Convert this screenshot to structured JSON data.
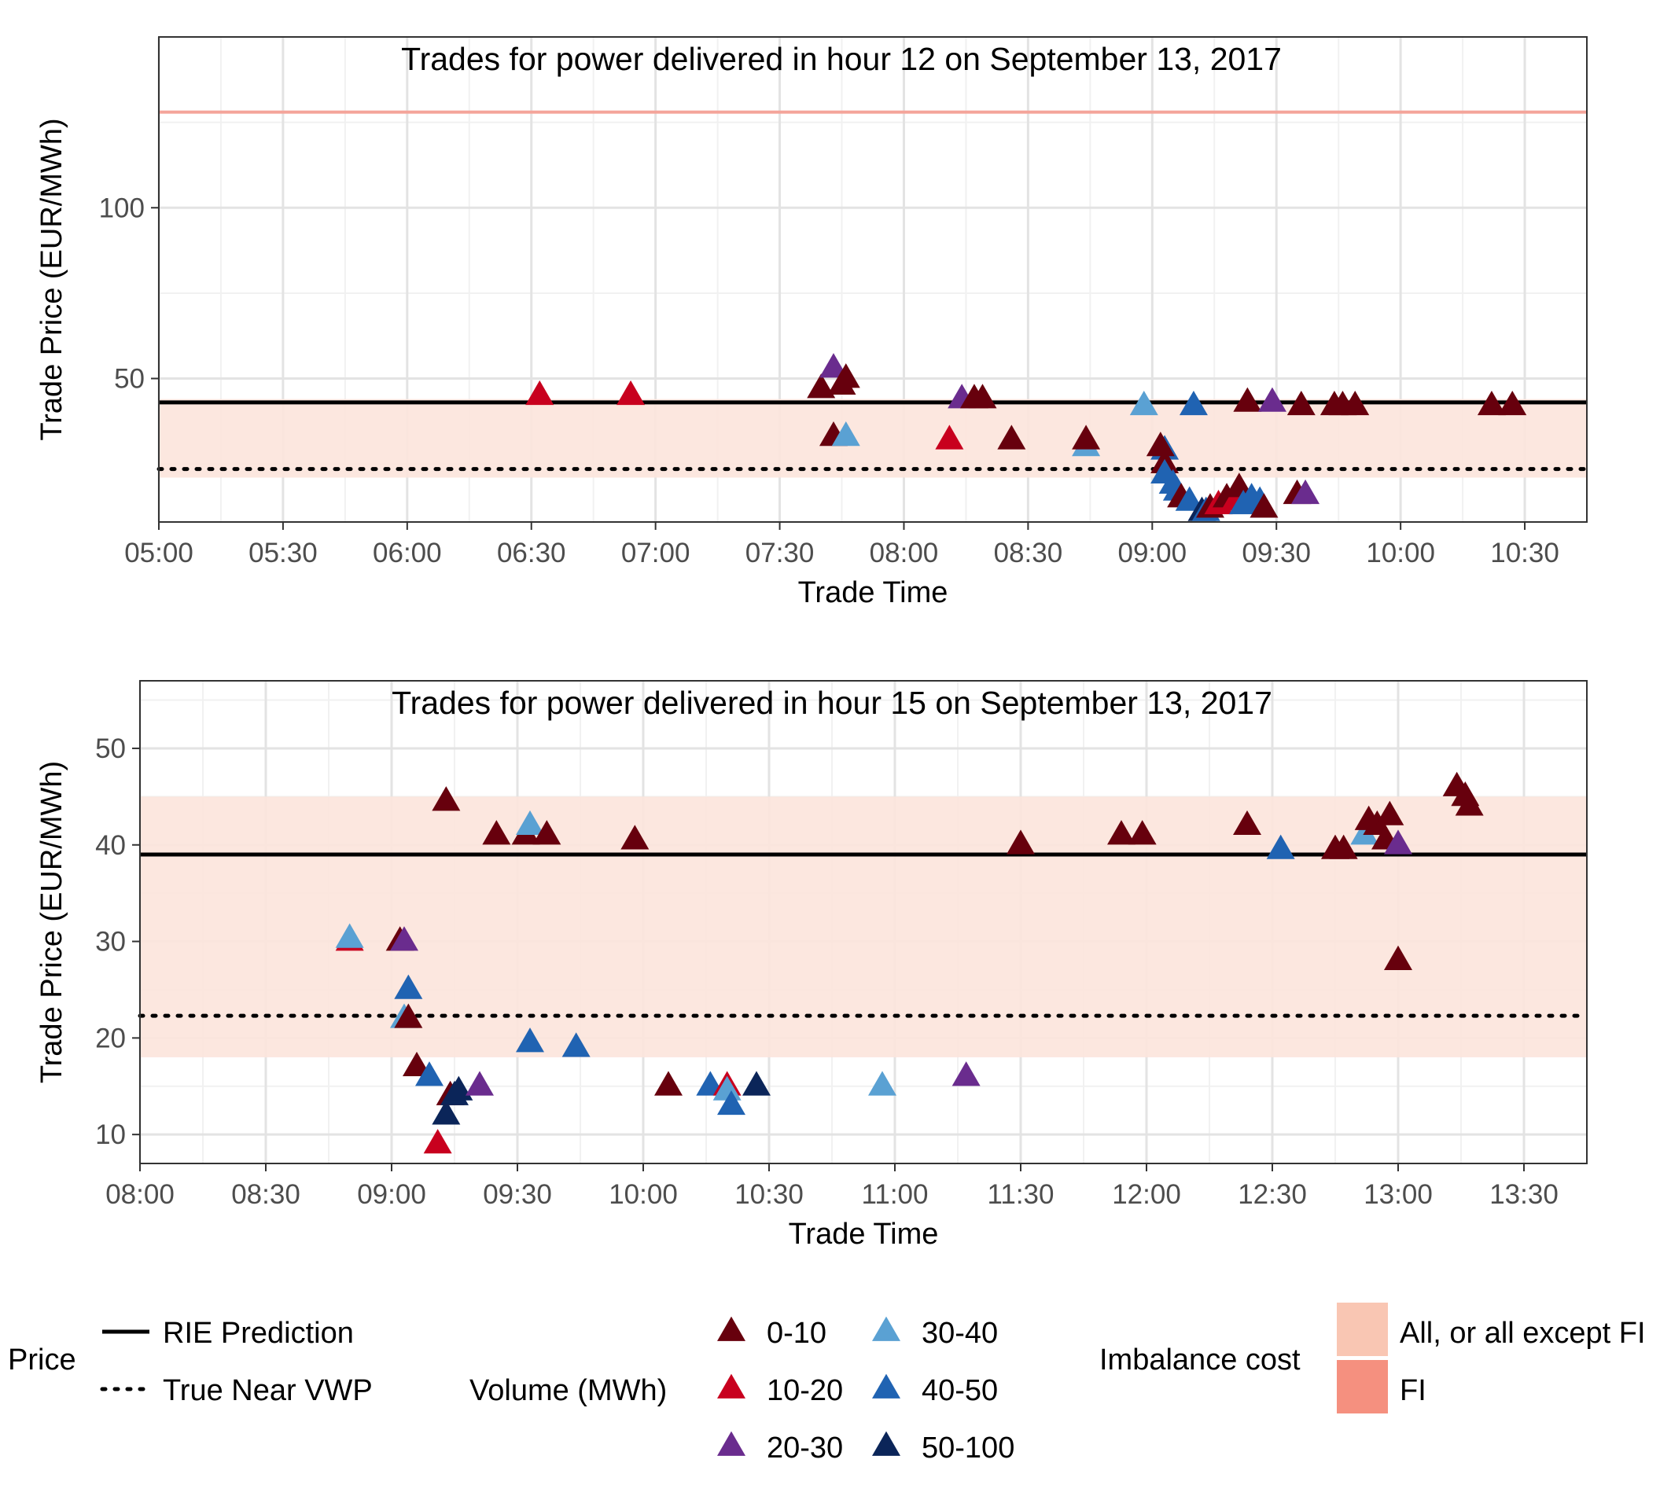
{
  "chart_data": [
    {
      "type": "scatter",
      "title": "Trades for power delivered in hour 12 on September 13, 2017",
      "xlabel": "Trade Time",
      "ylabel": "Trade Price (EUR/MWh)",
      "x_ticks": [
        "05:00",
        "05:30",
        "06:00",
        "06:30",
        "07:00",
        "07:30",
        "08:00",
        "08:30",
        "09:00",
        "09:30",
        "10:00",
        "10:30"
      ],
      "y_ticks": [
        50,
        100
      ],
      "xlim": [
        "05:00",
        "10:45"
      ],
      "ylim": [
        8,
        150
      ],
      "grid": true,
      "rie_prediction": 43,
      "true_near_vwp": 23.5,
      "imbalance_band": {
        "category": "All, or all except FI",
        "low": 21,
        "high": 44
      },
      "imbalance_line": {
        "category": "FI",
        "value": 128
      },
      "points": [
        {
          "x": "06:32",
          "y": 45,
          "volume": "10-20"
        },
        {
          "x": "06:54",
          "y": 45,
          "volume": "10-20"
        },
        {
          "x": "07:40",
          "y": 47,
          "volume": "0-10"
        },
        {
          "x": "07:43",
          "y": 53,
          "volume": "20-30"
        },
        {
          "x": "07:45",
          "y": 48,
          "volume": "0-10"
        },
        {
          "x": "07:46",
          "y": 50,
          "volume": "0-10"
        },
        {
          "x": "07:43",
          "y": 33,
          "volume": "0-10"
        },
        {
          "x": "07:46",
          "y": 33,
          "volume": "30-40"
        },
        {
          "x": "08:11",
          "y": 32,
          "volume": "10-20"
        },
        {
          "x": "08:14",
          "y": 44,
          "volume": "20-30"
        },
        {
          "x": "08:17",
          "y": 44,
          "volume": "0-10"
        },
        {
          "x": "08:19",
          "y": 44,
          "volume": "0-10"
        },
        {
          "x": "08:26",
          "y": 32,
          "volume": "0-10"
        },
        {
          "x": "08:44",
          "y": 30,
          "volume": "30-40"
        },
        {
          "x": "08:44",
          "y": 32,
          "volume": "0-10"
        },
        {
          "x": "08:58",
          "y": 42,
          "volume": "30-40"
        },
        {
          "x": "09:10",
          "y": 42,
          "volume": "40-50"
        },
        {
          "x": "09:23",
          "y": 43,
          "volume": "0-10"
        },
        {
          "x": "09:29",
          "y": 43,
          "volume": "20-30"
        },
        {
          "x": "09:36",
          "y": 42,
          "volume": "0-10"
        },
        {
          "x": "09:44",
          "y": 42,
          "volume": "0-10"
        },
        {
          "x": "09:46",
          "y": 42,
          "volume": "0-10"
        },
        {
          "x": "09:49",
          "y": 42,
          "volume": "0-10"
        },
        {
          "x": "10:22",
          "y": 42,
          "volume": "0-10"
        },
        {
          "x": "10:27",
          "y": 42,
          "volume": "0-10"
        },
        {
          "x": "09:03",
          "y": 29,
          "volume": "40-50"
        },
        {
          "x": "09:02",
          "y": 30,
          "volume": "0-10"
        },
        {
          "x": "09:03",
          "y": 25,
          "volume": "0-10"
        },
        {
          "x": "09:03",
          "y": 22,
          "volume": "40-50"
        },
        {
          "x": "09:05",
          "y": 19,
          "volume": "40-50"
        },
        {
          "x": "09:06",
          "y": 17,
          "volume": "40-50"
        },
        {
          "x": "09:07",
          "y": 15,
          "volume": "0-10"
        },
        {
          "x": "09:09",
          "y": 14,
          "volume": "40-50"
        },
        {
          "x": "09:12",
          "y": 11,
          "volume": "50-100"
        },
        {
          "x": "09:13",
          "y": 11,
          "volume": "40-50"
        },
        {
          "x": "09:14",
          "y": 12,
          "volume": "0-10"
        },
        {
          "x": "09:16",
          "y": 13,
          "volume": "10-20"
        },
        {
          "x": "09:18",
          "y": 15,
          "volume": "0-10"
        },
        {
          "x": "09:20",
          "y": 14,
          "volume": "10-20"
        },
        {
          "x": "09:21",
          "y": 18,
          "volume": "0-10"
        },
        {
          "x": "09:22",
          "y": 13,
          "volume": "40-50"
        },
        {
          "x": "09:24",
          "y": 15,
          "volume": "40-50"
        },
        {
          "x": "09:26",
          "y": 14,
          "volume": "40-50"
        },
        {
          "x": "09:27",
          "y": 12,
          "volume": "0-10"
        },
        {
          "x": "09:35",
          "y": 16,
          "volume": "0-10"
        },
        {
          "x": "09:37",
          "y": 16,
          "volume": "20-30"
        }
      ]
    },
    {
      "type": "scatter",
      "title": "Trades for power delivered in hour 15 on September 13, 2017",
      "xlabel": "Trade Time",
      "ylabel": "Trade Price (EUR/MWh)",
      "x_ticks": [
        "08:00",
        "08:30",
        "09:00",
        "09:30",
        "10:00",
        "10:30",
        "11:00",
        "11:30",
        "12:00",
        "12:30",
        "13:00",
        "13:30"
      ],
      "y_ticks": [
        10,
        20,
        30,
        40,
        50
      ],
      "xlim": [
        "08:00",
        "13:45"
      ],
      "ylim": [
        7,
        57
      ],
      "grid": true,
      "rie_prediction": 39,
      "true_near_vwp": 22.3,
      "imbalance_band": {
        "category": "All, or all except FI",
        "low": 18,
        "high": 45
      },
      "points": [
        {
          "x": "08:50",
          "y": 30,
          "volume": "10-20"
        },
        {
          "x": "08:50",
          "y": 30.3,
          "volume": "30-40"
        },
        {
          "x": "09:02",
          "y": 30,
          "volume": "0-10"
        },
        {
          "x": "09:03",
          "y": 30,
          "volume": "20-30"
        },
        {
          "x": "09:04",
          "y": 25,
          "volume": "40-50"
        },
        {
          "x": "09:03",
          "y": 22,
          "volume": "30-40"
        },
        {
          "x": "09:04",
          "y": 22,
          "volume": "0-10"
        },
        {
          "x": "09:06",
          "y": 17,
          "volume": "0-10"
        },
        {
          "x": "09:09",
          "y": 16,
          "volume": "40-50"
        },
        {
          "x": "09:11",
          "y": 9,
          "volume": "10-20"
        },
        {
          "x": "09:13",
          "y": 44.5,
          "volume": "0-10"
        },
        {
          "x": "09:13",
          "y": 12,
          "volume": "50-100"
        },
        {
          "x": "09:14",
          "y": 14,
          "volume": "0-10"
        },
        {
          "x": "09:15",
          "y": 14,
          "volume": "50-100"
        },
        {
          "x": "09:16",
          "y": 14.5,
          "volume": "50-100"
        },
        {
          "x": "09:21",
          "y": 15,
          "volume": "20-30"
        },
        {
          "x": "09:25",
          "y": 41,
          "volume": "0-10"
        },
        {
          "x": "09:32",
          "y": 41,
          "volume": "0-10"
        },
        {
          "x": "09:33",
          "y": 42,
          "volume": "30-40"
        },
        {
          "x": "09:33",
          "y": 19.5,
          "volume": "40-50"
        },
        {
          "x": "09:37",
          "y": 41,
          "volume": "0-10"
        },
        {
          "x": "09:44",
          "y": 19,
          "volume": "40-50"
        },
        {
          "x": "09:58",
          "y": 40.5,
          "volume": "0-10"
        },
        {
          "x": "10:06",
          "y": 15,
          "volume": "0-10"
        },
        {
          "x": "10:16",
          "y": 15,
          "volume": "40-50"
        },
        {
          "x": "10:20",
          "y": 15,
          "volume": "10-20"
        },
        {
          "x": "10:20",
          "y": 14.5,
          "volume": "30-40"
        },
        {
          "x": "10:21",
          "y": 13,
          "volume": "40-50"
        },
        {
          "x": "10:27",
          "y": 15,
          "volume": "50-100"
        },
        {
          "x": "10:57",
          "y": 15,
          "volume": "30-40"
        },
        {
          "x": "11:17",
          "y": 16,
          "volume": "20-30"
        },
        {
          "x": "11:30",
          "y": 40,
          "volume": "0-10"
        },
        {
          "x": "11:54",
          "y": 41,
          "volume": "0-10"
        },
        {
          "x": "11:59",
          "y": 41,
          "volume": "0-10"
        },
        {
          "x": "12:24",
          "y": 42,
          "volume": "0-10"
        },
        {
          "x": "12:32",
          "y": 39.5,
          "volume": "40-50"
        },
        {
          "x": "12:45",
          "y": 39.5,
          "volume": "0-10"
        },
        {
          "x": "12:47",
          "y": 39.5,
          "volume": "0-10"
        },
        {
          "x": "12:52",
          "y": 41,
          "volume": "30-40"
        },
        {
          "x": "12:53",
          "y": 42.5,
          "volume": "0-10"
        },
        {
          "x": "12:55",
          "y": 42,
          "volume": "0-10"
        },
        {
          "x": "12:57",
          "y": 40.5,
          "volume": "0-10"
        },
        {
          "x": "12:58",
          "y": 43,
          "volume": "0-10"
        },
        {
          "x": "13:00",
          "y": 40,
          "volume": "20-30"
        },
        {
          "x": "13:00",
          "y": 28,
          "volume": "0-10"
        },
        {
          "x": "13:14",
          "y": 46,
          "volume": "0-10"
        },
        {
          "x": "13:16",
          "y": 45,
          "volume": "0-10"
        },
        {
          "x": "13:17",
          "y": 44,
          "volume": "0-10"
        }
      ]
    }
  ],
  "legend": {
    "price": {
      "title": "Price",
      "items": [
        {
          "label": "RIE Prediction",
          "style": "solid"
        },
        {
          "label": "True Near VWP",
          "style": "dotted"
        }
      ]
    },
    "volume": {
      "title": "Volume (MWh)",
      "items": [
        {
          "label": "0-10",
          "color": "#67000d"
        },
        {
          "label": "10-20",
          "color": "#c8001e"
        },
        {
          "label": "20-30",
          "color": "#6a2c8e"
        },
        {
          "label": "30-40",
          "color": "#5aa1d3"
        },
        {
          "label": "40-50",
          "color": "#2063b2"
        },
        {
          "label": "50-100",
          "color": "#0b2559"
        }
      ]
    },
    "imbalance": {
      "title": "Imbalance cost",
      "items": [
        {
          "label": "All, or all except FI",
          "color": "#f9c6b3"
        },
        {
          "label": "FI",
          "color": "#f5907f"
        }
      ]
    }
  },
  "colors": {
    "band_fill": "#fce4dc",
    "fi_line": "#f4a49a",
    "grid_major": "#e3e3e3",
    "grid_minor": "#f1f1f1"
  }
}
